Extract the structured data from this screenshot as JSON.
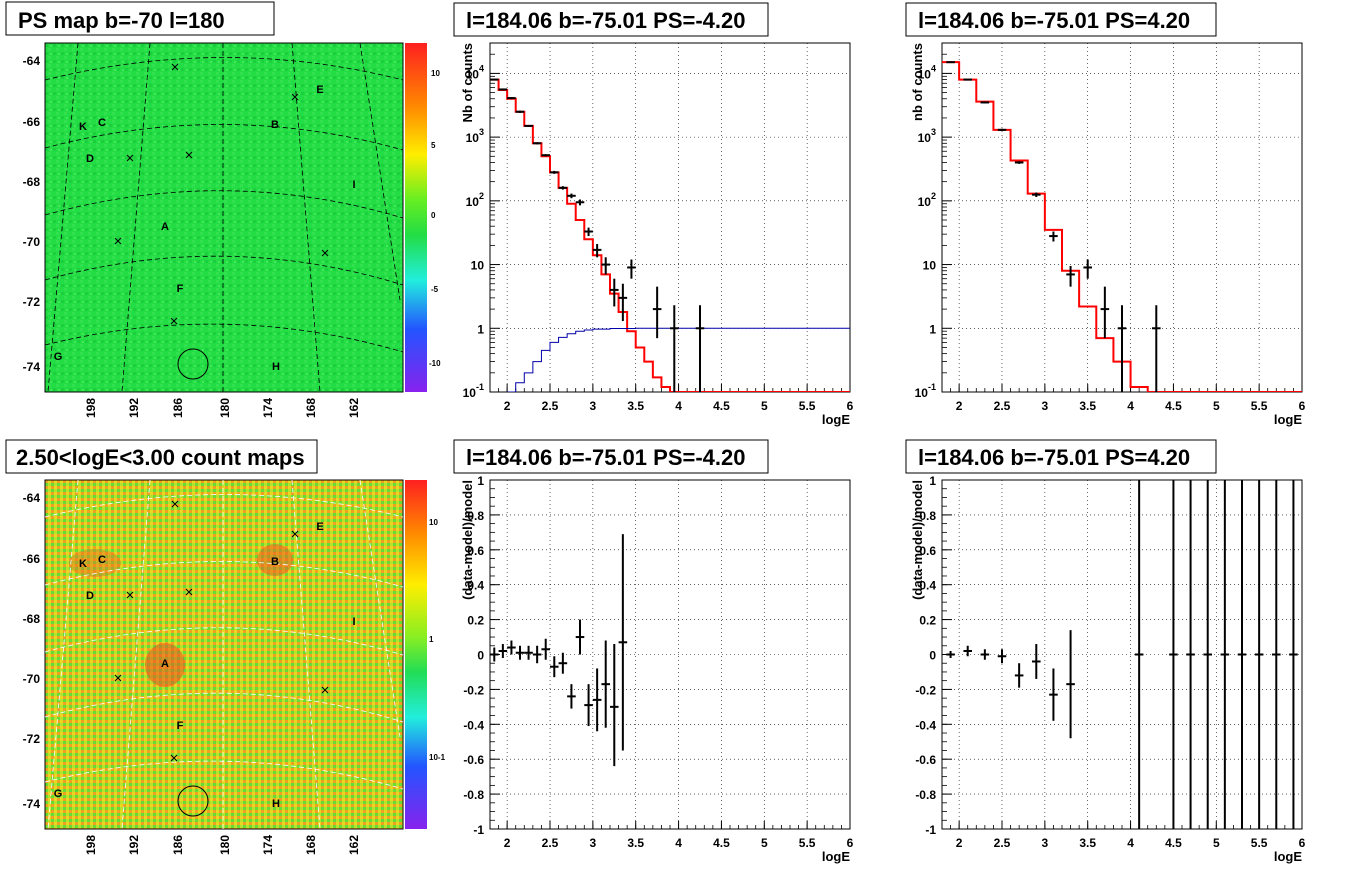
{
  "panels": {
    "map_ps": {
      "title": "PS map b=-70 l=180",
      "y_ticks": [
        "-64",
        "-66",
        "-68",
        "-70",
        "-72",
        "-74"
      ],
      "x_ticks": [
        "198",
        "192",
        "186",
        "180",
        "174",
        "168",
        "162"
      ],
      "colorbar_ticks": [
        "10",
        "5",
        "0",
        "-5",
        "-10"
      ],
      "sources": [
        {
          "label": "A"
        },
        {
          "label": "B"
        },
        {
          "label": "C"
        },
        {
          "label": "D"
        },
        {
          "label": "E"
        },
        {
          "label": "F"
        },
        {
          "label": "G"
        },
        {
          "label": "H"
        },
        {
          "label": "I"
        },
        {
          "label": "K"
        }
      ]
    },
    "map_counts": {
      "title": "2.50<logE<3.00 count maps",
      "y_ticks": [
        "-64",
        "-66",
        "-68",
        "-70",
        "-72",
        "-74"
      ],
      "x_ticks": [
        "198",
        "192",
        "186",
        "180",
        "174",
        "168",
        "162"
      ],
      "colorbar_ticks": [
        "10",
        "1",
        "10-1"
      ],
      "sources": [
        {
          "label": "A"
        },
        {
          "label": "B"
        },
        {
          "label": "C"
        },
        {
          "label": "D"
        },
        {
          "label": "E"
        },
        {
          "label": "F"
        },
        {
          "label": "G"
        },
        {
          "label": "H"
        },
        {
          "label": "I"
        },
        {
          "label": "K"
        }
      ]
    }
  },
  "colors": {
    "model_line": "#ff0000",
    "blue_line": "#0000aa",
    "data_points": "#000000",
    "map_bg": "#22dd44"
  },
  "chart_data": [
    {
      "type": "line",
      "title": "l=184.06 b=-75.01 PS=-4.20",
      "xlabel": "logE",
      "ylabel": "Nb of counts",
      "yscale": "log",
      "xlim": [
        1.8,
        6
      ],
      "ylim": [
        0.1,
        30000
      ],
      "x_ticks": [
        "2",
        "2.5",
        "3",
        "3.5",
        "4",
        "4.5",
        "5",
        "5.5",
        "6"
      ],
      "y_ticks": [
        "10^4",
        "10^3",
        "10^2",
        "10",
        "1",
        "10^-1"
      ],
      "grid": true,
      "series": [
        {
          "kind": "model-step",
          "color": "red",
          "edges": [
            1.8,
            1.9,
            2.0,
            2.1,
            2.2,
            2.3,
            2.4,
            2.5,
            2.6,
            2.7,
            2.8,
            2.9,
            3.0,
            3.1,
            3.2,
            3.3,
            3.4,
            3.5,
            3.6,
            3.7,
            3.8,
            3.9,
            4.0,
            6.0
          ],
          "values": [
            8000,
            5500,
            4000,
            2500,
            1500,
            800,
            500,
            280,
            160,
            90,
            50,
            25,
            14,
            7,
            3.5,
            1.8,
            0.9,
            0.5,
            0.3,
            0.17,
            0.12,
            0.1,
            0.1
          ]
        },
        {
          "kind": "line",
          "color": "blue",
          "x": [
            2.0,
            2.1,
            2.2,
            2.3,
            2.4,
            2.5,
            2.6,
            2.7,
            2.8,
            2.9,
            3.0,
            3.2,
            3.5,
            4.0,
            6.0
          ],
          "y": [
            0.1,
            0.14,
            0.2,
            0.3,
            0.45,
            0.6,
            0.72,
            0.82,
            0.9,
            0.94,
            0.97,
            0.99,
            1.0,
            1.0,
            1.0
          ]
        },
        {
          "kind": "points",
          "color": "black",
          "points": [
            {
              "x": 1.85,
              "y": 8000,
              "lo": 7800,
              "hi": 8200
            },
            {
              "x": 1.95,
              "y": 5600,
              "lo": 5400,
              "hi": 5800
            },
            {
              "x": 2.05,
              "y": 4100,
              "lo": 3950,
              "hi": 4250
            },
            {
              "x": 2.15,
              "y": 2500,
              "lo": 2400,
              "hi": 2600
            },
            {
              "x": 2.25,
              "y": 1500,
              "lo": 1450,
              "hi": 1550
            },
            {
              "x": 2.35,
              "y": 800,
              "lo": 770,
              "hi": 830
            },
            {
              "x": 2.45,
              "y": 520,
              "lo": 500,
              "hi": 540
            },
            {
              "x": 2.55,
              "y": 280,
              "lo": 265,
              "hi": 295
            },
            {
              "x": 2.65,
              "y": 160,
              "lo": 150,
              "hi": 170
            },
            {
              "x": 2.75,
              "y": 120,
              "lo": 110,
              "hi": 130
            },
            {
              "x": 2.85,
              "y": 95,
              "lo": 85,
              "hi": 105
            },
            {
              "x": 2.95,
              "y": 33,
              "lo": 28,
              "hi": 38
            },
            {
              "x": 3.05,
              "y": 17,
              "lo": 13,
              "hi": 21
            },
            {
              "x": 3.15,
              "y": 10,
              "lo": 7,
              "hi": 13
            },
            {
              "x": 3.25,
              "y": 4,
              "lo": 2.2,
              "hi": 6
            },
            {
              "x": 3.35,
              "y": 3,
              "lo": 1.3,
              "hi": 5
            },
            {
              "x": 3.45,
              "y": 9,
              "lo": 6,
              "hi": 12
            },
            {
              "x": 3.75,
              "y": 2,
              "lo": 0.7,
              "hi": 4.5
            },
            {
              "x": 3.95,
              "y": 1,
              "lo": 0.1,
              "hi": 2.3
            },
            {
              "x": 4.25,
              "y": 1,
              "lo": 0.1,
              "hi": 2.3
            }
          ]
        }
      ]
    },
    {
      "type": "line",
      "title": "l=184.06 b=-75.01 PS=4.20",
      "xlabel": "logE",
      "ylabel": "nb of counts",
      "yscale": "log",
      "xlim": [
        1.8,
        6
      ],
      "ylim": [
        0.1,
        30000
      ],
      "x_ticks": [
        "2",
        "2.5",
        "3",
        "3.5",
        "4",
        "4.5",
        "5",
        "5.5",
        "6"
      ],
      "y_ticks": [
        "10^4",
        "10^3",
        "10^2",
        "10",
        "1",
        "10^-1"
      ],
      "grid": true,
      "series": [
        {
          "kind": "model-step",
          "color": "red",
          "edges": [
            1.8,
            2.0,
            2.2,
            2.4,
            2.6,
            2.8,
            3.0,
            3.2,
            3.4,
            3.6,
            3.8,
            4.0,
            4.2,
            6.0
          ],
          "values": [
            15000,
            8000,
            3600,
            1300,
            430,
            130,
            35,
            8,
            2.2,
            0.7,
            0.3,
            0.12,
            0.1
          ]
        },
        {
          "kind": "points",
          "color": "black",
          "points": [
            {
              "x": 1.9,
              "y": 15000,
              "lo": 14700,
              "hi": 15300
            },
            {
              "x": 2.1,
              "y": 8000,
              "lo": 7800,
              "hi": 8200
            },
            {
              "x": 2.3,
              "y": 3500,
              "lo": 3400,
              "hi": 3600
            },
            {
              "x": 2.5,
              "y": 1300,
              "lo": 1250,
              "hi": 1350
            },
            {
              "x": 2.7,
              "y": 400,
              "lo": 380,
              "hi": 420
            },
            {
              "x": 2.9,
              "y": 125,
              "lo": 115,
              "hi": 135
            },
            {
              "x": 3.1,
              "y": 28,
              "lo": 23,
              "hi": 33
            },
            {
              "x": 3.3,
              "y": 7,
              "lo": 4.5,
              "hi": 9.5
            },
            {
              "x": 3.5,
              "y": 9,
              "lo": 6,
              "hi": 12
            },
            {
              "x": 3.7,
              "y": 2,
              "lo": 0.7,
              "hi": 4.5
            },
            {
              "x": 3.9,
              "y": 1,
              "lo": 0.1,
              "hi": 2.3
            },
            {
              "x": 4.3,
              "y": 1,
              "lo": 0.1,
              "hi": 2.3
            }
          ]
        }
      ]
    },
    {
      "type": "scatter",
      "title": "l=184.06 b=-75.01 PS=-4.20",
      "xlabel": "logE",
      "ylabel": "(data-model)/model",
      "xlim": [
        1.8,
        6
      ],
      "ylim": [
        -1,
        1
      ],
      "x_ticks": [
        "2",
        "2.5",
        "3",
        "3.5",
        "4",
        "4.5",
        "5",
        "5.5",
        "6"
      ],
      "y_ticks": [
        "1",
        "0.8",
        "0.6",
        "0.4",
        "0.2",
        "0",
        "-0.2",
        "-0.4",
        "-0.6",
        "-0.8",
        "-1"
      ],
      "grid": true,
      "points": [
        {
          "x": 1.85,
          "y": 0.0,
          "lo": -0.04,
          "hi": 0.04
        },
        {
          "x": 1.95,
          "y": 0.02,
          "lo": -0.02,
          "hi": 0.06
        },
        {
          "x": 2.05,
          "y": 0.04,
          "lo": 0.0,
          "hi": 0.08
        },
        {
          "x": 2.15,
          "y": 0.01,
          "lo": -0.03,
          "hi": 0.05
        },
        {
          "x": 2.25,
          "y": 0.01,
          "lo": -0.03,
          "hi": 0.05
        },
        {
          "x": 2.35,
          "y": 0.0,
          "lo": -0.05,
          "hi": 0.05
        },
        {
          "x": 2.45,
          "y": 0.03,
          "lo": -0.03,
          "hi": 0.09
        },
        {
          "x": 2.55,
          "y": -0.07,
          "lo": -0.13,
          "hi": -0.01
        },
        {
          "x": 2.65,
          "y": -0.05,
          "lo": -0.11,
          "hi": 0.01
        },
        {
          "x": 2.75,
          "y": -0.24,
          "lo": -0.31,
          "hi": -0.17
        },
        {
          "x": 2.85,
          "y": 0.1,
          "lo": 0.0,
          "hi": 0.2
        },
        {
          "x": 2.95,
          "y": -0.29,
          "lo": -0.41,
          "hi": -0.17
        },
        {
          "x": 3.05,
          "y": -0.26,
          "lo": -0.44,
          "hi": -0.08
        },
        {
          "x": 3.15,
          "y": -0.17,
          "lo": -0.42,
          "hi": 0.08
        },
        {
          "x": 3.25,
          "y": -0.3,
          "lo": -0.64,
          "hi": 0.06
        },
        {
          "x": 3.35,
          "y": 0.07,
          "lo": -0.55,
          "hi": 0.69
        }
      ]
    },
    {
      "type": "scatter",
      "title": "l=184.06 b=-75.01 PS=4.20",
      "xlabel": "logE",
      "ylabel": "(data-model)/model",
      "xlim": [
        1.8,
        6
      ],
      "ylim": [
        -1,
        1
      ],
      "x_ticks": [
        "2",
        "2.5",
        "3",
        "3.5",
        "4",
        "4.5",
        "5",
        "5.5",
        "6"
      ],
      "y_ticks": [
        "1",
        "0.8",
        "0.6",
        "0.4",
        "0.2",
        "0",
        "-0.2",
        "-0.4",
        "-0.6",
        "-0.8",
        "-1"
      ],
      "grid": true,
      "points": [
        {
          "x": 1.9,
          "y": 0.0,
          "lo": -0.02,
          "hi": 0.02
        },
        {
          "x": 2.1,
          "y": 0.02,
          "lo": -0.01,
          "hi": 0.05
        },
        {
          "x": 2.3,
          "y": 0.0,
          "lo": -0.03,
          "hi": 0.03
        },
        {
          "x": 2.5,
          "y": -0.01,
          "lo": -0.05,
          "hi": 0.03
        },
        {
          "x": 2.7,
          "y": -0.12,
          "lo": -0.19,
          "hi": -0.05
        },
        {
          "x": 2.9,
          "y": -0.04,
          "lo": -0.14,
          "hi": 0.06
        },
        {
          "x": 3.1,
          "y": -0.23,
          "lo": -0.38,
          "hi": -0.08
        },
        {
          "x": 3.3,
          "y": -0.17,
          "lo": -0.48,
          "hi": 0.14
        },
        {
          "x": 4.1,
          "y": 0,
          "lo": -1,
          "hi": 1
        },
        {
          "x": 4.5,
          "y": 0,
          "lo": -1,
          "hi": 1
        },
        {
          "x": 4.7,
          "y": 0,
          "lo": -1,
          "hi": 1
        },
        {
          "x": 4.9,
          "y": 0,
          "lo": -1,
          "hi": 1
        },
        {
          "x": 5.1,
          "y": 0,
          "lo": -1,
          "hi": 1
        },
        {
          "x": 5.3,
          "y": 0,
          "lo": -1,
          "hi": 1
        },
        {
          "x": 5.5,
          "y": 0,
          "lo": -1,
          "hi": 1
        },
        {
          "x": 5.7,
          "y": 0,
          "lo": -1,
          "hi": 1
        },
        {
          "x": 5.9,
          "y": 0,
          "lo": -1,
          "hi": 1
        }
      ]
    }
  ]
}
